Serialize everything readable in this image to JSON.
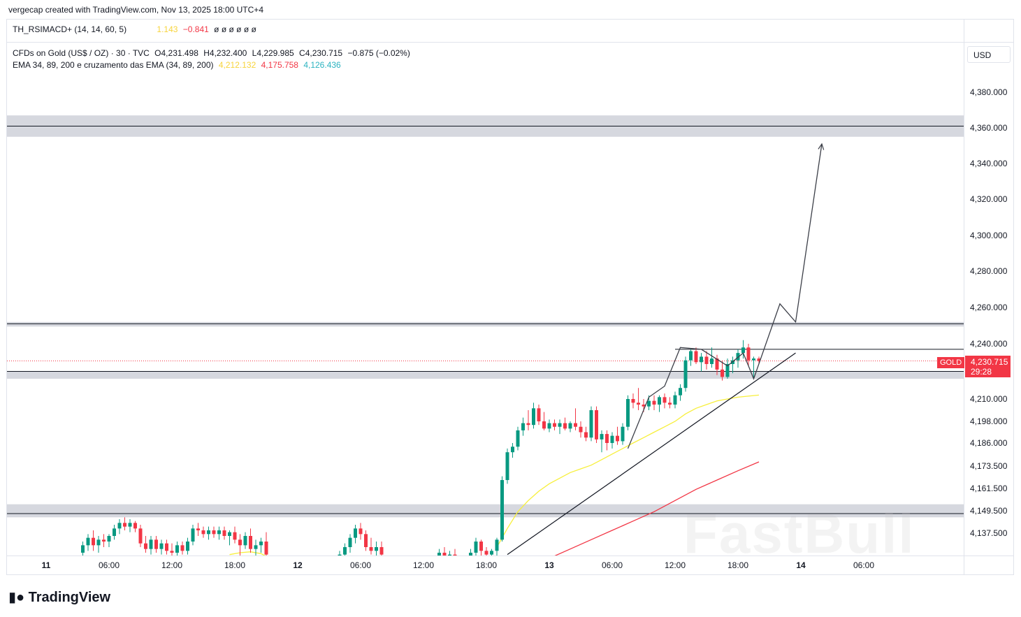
{
  "header": {
    "credit": "vergecap created with TradingView.com, Nov 13, 2025 18:00 UTC+4"
  },
  "oscillator": {
    "label": "TH_RSIMACD+ (14, 14, 60, 5)",
    "value1": "1.143",
    "value2": "−0.841",
    "placeholders": "ø  ø  ø  ø  ø  ø"
  },
  "symbol": {
    "title": "CFDs on Gold (US$ / OZ) · 30 · TVC",
    "open": "O4,231.498",
    "high": "H4,232.400",
    "low": "L4,229.985",
    "close": "C4,230.715",
    "change": "−0.875 (−0.02%)"
  },
  "ema": {
    "label": "EMA 34, 89, 200 e cruzamento das EMA (34, 89, 200)",
    "v34": "4,212.132",
    "v89": "4,175.758",
    "v200": "4,126.436"
  },
  "currency": "USD",
  "price_tag": {
    "symbol": "GOLD",
    "price": "4,230.715",
    "countdown": "29:28"
  },
  "footer": {
    "brand": "TradingView"
  },
  "watermark": "FastBull",
  "colors": {
    "up": "#089981",
    "down": "#f23645",
    "ema34": "#f7ef3b",
    "ema89": "#f23645",
    "zone": "#d1d4dc"
  },
  "chart_data": {
    "type": "candlestick",
    "symbol": "GOLD",
    "timeframe": "30",
    "y_ticks": [
      {
        "label": "4,380.000",
        "value": 4380
      },
      {
        "label": "4,360.000",
        "value": 4360
      },
      {
        "label": "4,340.000",
        "value": 4340
      },
      {
        "label": "4,320.000",
        "value": 4320
      },
      {
        "label": "4,300.000",
        "value": 4300
      },
      {
        "label": "4,280.000",
        "value": 4280
      },
      {
        "label": "4,260.000",
        "value": 4260
      },
      {
        "label": "4,240.000",
        "value": 4240
      },
      {
        "label": "4,210.000",
        "value": 4210
      },
      {
        "label": "4,198.000",
        "value": 4198
      },
      {
        "label": "4,186.000",
        "value": 4186
      },
      {
        "label": "4,173.500",
        "value": 4173.5
      },
      {
        "label": "4,161.500",
        "value": 4161.5
      },
      {
        "label": "4,149.500",
        "value": 4149.5
      },
      {
        "label": "4,137.500",
        "value": 4137.5
      }
    ],
    "x_ticks": [
      {
        "label": "11",
        "bar": 0,
        "bold": true
      },
      {
        "label": "06:00",
        "bar": 12
      },
      {
        "label": "12:00",
        "bar": 24
      },
      {
        "label": "18:00",
        "bar": 36
      },
      {
        "label": "12",
        "bar": 48,
        "bold": true
      },
      {
        "label": "06:00",
        "bar": 60
      },
      {
        "label": "12:00",
        "bar": 72
      },
      {
        "label": "18:00",
        "bar": 84
      },
      {
        "label": "13",
        "bar": 96,
        "bold": true
      },
      {
        "label": "06:00",
        "bar": 108
      },
      {
        "label": "12:00",
        "bar": 120
      },
      {
        "label": "18:00",
        "bar": 132
      },
      {
        "label": "14",
        "bar": 144,
        "bold": true
      },
      {
        "label": "06:00",
        "bar": 156
      }
    ],
    "last_price": 4230.715,
    "candles": [
      {
        "bar": 7,
        "o": 4127,
        "h": 4133,
        "l": 4124,
        "c": 4131
      },
      {
        "bar": 8,
        "o": 4131,
        "h": 4137,
        "l": 4128,
        "c": 4135
      },
      {
        "bar": 9,
        "o": 4135,
        "h": 4139,
        "l": 4128,
        "c": 4131
      },
      {
        "bar": 10,
        "o": 4131,
        "h": 4136,
        "l": 4127,
        "c": 4134
      },
      {
        "bar": 11,
        "o": 4134,
        "h": 4137,
        "l": 4130,
        "c": 4133
      },
      {
        "bar": 12,
        "o": 4133,
        "h": 4137,
        "l": 4130,
        "c": 4136
      },
      {
        "bar": 13,
        "o": 4136,
        "h": 4142,
        "l": 4134,
        "c": 4140
      },
      {
        "bar": 14,
        "o": 4140,
        "h": 4145,
        "l": 4137,
        "c": 4143
      },
      {
        "bar": 15,
        "o": 4143,
        "h": 4146,
        "l": 4139,
        "c": 4141
      },
      {
        "bar": 16,
        "o": 4141,
        "h": 4145,
        "l": 4138,
        "c": 4143
      },
      {
        "bar": 17,
        "o": 4143,
        "h": 4144,
        "l": 4138,
        "c": 4140
      },
      {
        "bar": 18,
        "o": 4140,
        "h": 4142,
        "l": 4130,
        "c": 4132
      },
      {
        "bar": 19,
        "o": 4132,
        "h": 4136,
        "l": 4127,
        "c": 4129
      },
      {
        "bar": 20,
        "o": 4129,
        "h": 4136,
        "l": 4126,
        "c": 4134
      },
      {
        "bar": 21,
        "o": 4134,
        "h": 4136,
        "l": 4127,
        "c": 4129
      },
      {
        "bar": 22,
        "o": 4129,
        "h": 4134,
        "l": 4126,
        "c": 4132
      },
      {
        "bar": 23,
        "o": 4132,
        "h": 4134,
        "l": 4126,
        "c": 4128
      },
      {
        "bar": 24,
        "o": 4128,
        "h": 4132,
        "l": 4125,
        "c": 4127
      },
      {
        "bar": 25,
        "o": 4127,
        "h": 4133,
        "l": 4125,
        "c": 4131
      },
      {
        "bar": 26,
        "o": 4131,
        "h": 4133,
        "l": 4126,
        "c": 4128
      },
      {
        "bar": 27,
        "o": 4128,
        "h": 4135,
        "l": 4126,
        "c": 4133
      },
      {
        "bar": 28,
        "o": 4133,
        "h": 4142,
        "l": 4131,
        "c": 4140
      },
      {
        "bar": 29,
        "o": 4140,
        "h": 4143,
        "l": 4136,
        "c": 4139
      },
      {
        "bar": 30,
        "o": 4139,
        "h": 4141,
        "l": 4135,
        "c": 4137
      },
      {
        "bar": 31,
        "o": 4137,
        "h": 4141,
        "l": 4134,
        "c": 4139
      },
      {
        "bar": 32,
        "o": 4139,
        "h": 4141,
        "l": 4135,
        "c": 4137
      },
      {
        "bar": 33,
        "o": 4137,
        "h": 4141,
        "l": 4134,
        "c": 4139
      },
      {
        "bar": 34,
        "o": 4139,
        "h": 4141,
        "l": 4134,
        "c": 4136
      },
      {
        "bar": 35,
        "o": 4136,
        "h": 4139,
        "l": 4131,
        "c": 4138
      },
      {
        "bar": 36,
        "o": 4138,
        "h": 4141,
        "l": 4132,
        "c": 4134
      },
      {
        "bar": 37,
        "o": 4134,
        "h": 4137,
        "l": 4125,
        "c": 4131
      },
      {
        "bar": 38,
        "o": 4131,
        "h": 4138,
        "l": 4129,
        "c": 4136
      },
      {
        "bar": 39,
        "o": 4136,
        "h": 4140,
        "l": 4127,
        "c": 4129
      },
      {
        "bar": 40,
        "o": 4129,
        "h": 4134,
        "l": 4125,
        "c": 4131
      },
      {
        "bar": 41,
        "o": 4131,
        "h": 4135,
        "l": 4127,
        "c": 4133
      },
      {
        "bar": 42,
        "o": 4133,
        "h": 4138,
        "l": 4124,
        "c": 4126
      },
      {
        "bar": 56,
        "o": 4124,
        "h": 4128,
        "l": 4121,
        "c": 4126
      },
      {
        "bar": 57,
        "o": 4126,
        "h": 4132,
        "l": 4124,
        "c": 4130
      },
      {
        "bar": 58,
        "o": 4130,
        "h": 4137,
        "l": 4127,
        "c": 4135
      },
      {
        "bar": 59,
        "o": 4135,
        "h": 4142,
        "l": 4132,
        "c": 4140
      },
      {
        "bar": 60,
        "o": 4140,
        "h": 4143,
        "l": 4134,
        "c": 4137
      },
      {
        "bar": 61,
        "o": 4137,
        "h": 4139,
        "l": 4128,
        "c": 4130
      },
      {
        "bar": 62,
        "o": 4130,
        "h": 4135,
        "l": 4126,
        "c": 4128
      },
      {
        "bar": 63,
        "o": 4128,
        "h": 4133,
        "l": 4125,
        "c": 4130
      },
      {
        "bar": 64,
        "o": 4130,
        "h": 4133,
        "l": 4124,
        "c": 4126
      },
      {
        "bar": 75,
        "o": 4124,
        "h": 4129,
        "l": 4121,
        "c": 4127
      },
      {
        "bar": 76,
        "o": 4127,
        "h": 4130,
        "l": 4124,
        "c": 4125
      },
      {
        "bar": 77,
        "o": 4125,
        "h": 4128,
        "l": 4122,
        "c": 4126
      },
      {
        "bar": 78,
        "o": 4126,
        "h": 4129,
        "l": 4122,
        "c": 4124
      },
      {
        "bar": 81,
        "o": 4124,
        "h": 4129,
        "l": 4121,
        "c": 4127
      },
      {
        "bar": 82,
        "o": 4127,
        "h": 4135,
        "l": 4125,
        "c": 4133
      },
      {
        "bar": 83,
        "o": 4133,
        "h": 4134,
        "l": 4124,
        "c": 4128
      },
      {
        "bar": 84,
        "o": 4128,
        "h": 4130,
        "l": 4122,
        "c": 4126
      },
      {
        "bar": 85,
        "o": 4126,
        "h": 4129,
        "l": 4123,
        "c": 4128
      },
      {
        "bar": 86,
        "o": 4128,
        "h": 4135,
        "l": 4125,
        "c": 4134
      },
      {
        "bar": 87,
        "o": 4134,
        "h": 4168,
        "l": 4133,
        "c": 4166
      },
      {
        "bar": 88,
        "o": 4166,
        "h": 4183,
        "l": 4164,
        "c": 4181
      },
      {
        "bar": 89,
        "o": 4181,
        "h": 4186,
        "l": 4178,
        "c": 4184
      },
      {
        "bar": 90,
        "o": 4184,
        "h": 4195,
        "l": 4182,
        "c": 4193
      },
      {
        "bar": 91,
        "o": 4193,
        "h": 4200,
        "l": 4190,
        "c": 4197
      },
      {
        "bar": 92,
        "o": 4197,
        "h": 4204,
        "l": 4193,
        "c": 4196
      },
      {
        "bar": 93,
        "o": 4196,
        "h": 4208,
        "l": 4194,
        "c": 4205
      },
      {
        "bar": 94,
        "o": 4205,
        "h": 4207,
        "l": 4196,
        "c": 4198
      },
      {
        "bar": 95,
        "o": 4198,
        "h": 4203,
        "l": 4193,
        "c": 4194
      },
      {
        "bar": 96,
        "o": 4194,
        "h": 4199,
        "l": 4192,
        "c": 4197
      },
      {
        "bar": 97,
        "o": 4197,
        "h": 4199,
        "l": 4193,
        "c": 4195
      },
      {
        "bar": 98,
        "o": 4195,
        "h": 4199,
        "l": 4191,
        "c": 4197
      },
      {
        "bar": 99,
        "o": 4197,
        "h": 4200,
        "l": 4193,
        "c": 4194
      },
      {
        "bar": 100,
        "o": 4194,
        "h": 4198,
        "l": 4192,
        "c": 4197
      },
      {
        "bar": 101,
        "o": 4197,
        "h": 4205,
        "l": 4193,
        "c": 4195
      },
      {
        "bar": 102,
        "o": 4195,
        "h": 4198,
        "l": 4189,
        "c": 4192
      },
      {
        "bar": 103,
        "o": 4192,
        "h": 4195,
        "l": 4187,
        "c": 4189
      },
      {
        "bar": 104,
        "o": 4189,
        "h": 4206,
        "l": 4187,
        "c": 4204
      },
      {
        "bar": 105,
        "o": 4204,
        "h": 4206,
        "l": 4186,
        "c": 4188
      },
      {
        "bar": 106,
        "o": 4188,
        "h": 4193,
        "l": 4181,
        "c": 4191
      },
      {
        "bar": 107,
        "o": 4191,
        "h": 4193,
        "l": 4182,
        "c": 4186
      },
      {
        "bar": 108,
        "o": 4186,
        "h": 4192,
        "l": 4183,
        "c": 4190
      },
      {
        "bar": 109,
        "o": 4190,
        "h": 4195,
        "l": 4185,
        "c": 4187
      },
      {
        "bar": 110,
        "o": 4187,
        "h": 4197,
        "l": 4185,
        "c": 4195
      },
      {
        "bar": 111,
        "o": 4195,
        "h": 4212,
        "l": 4193,
        "c": 4210
      },
      {
        "bar": 112,
        "o": 4210,
        "h": 4213,
        "l": 4205,
        "c": 4208
      },
      {
        "bar": 113,
        "o": 4208,
        "h": 4216,
        "l": 4204,
        "c": 4207
      },
      {
        "bar": 114,
        "o": 4207,
        "h": 4210,
        "l": 4203,
        "c": 4206
      },
      {
        "bar": 115,
        "o": 4206,
        "h": 4212,
        "l": 4204,
        "c": 4209
      },
      {
        "bar": 116,
        "o": 4209,
        "h": 4212,
        "l": 4204,
        "c": 4207
      },
      {
        "bar": 117,
        "o": 4207,
        "h": 4212,
        "l": 4203,
        "c": 4211
      },
      {
        "bar": 118,
        "o": 4211,
        "h": 4213,
        "l": 4205,
        "c": 4208
      },
      {
        "bar": 119,
        "o": 4208,
        "h": 4211,
        "l": 4205,
        "c": 4207
      },
      {
        "bar": 120,
        "o": 4207,
        "h": 4214,
        "l": 4205,
        "c": 4212
      },
      {
        "bar": 121,
        "o": 4212,
        "h": 4218,
        "l": 4209,
        "c": 4216
      },
      {
        "bar": 122,
        "o": 4216,
        "h": 4233,
        "l": 4214,
        "c": 4231
      },
      {
        "bar": 123,
        "o": 4231,
        "h": 4237,
        "l": 4228,
        "c": 4236
      },
      {
        "bar": 124,
        "o": 4236,
        "h": 4238,
        "l": 4229,
        "c": 4230
      },
      {
        "bar": 125,
        "o": 4230,
        "h": 4235,
        "l": 4225,
        "c": 4233
      },
      {
        "bar": 126,
        "o": 4233,
        "h": 4236,
        "l": 4226,
        "c": 4229
      },
      {
        "bar": 127,
        "o": 4229,
        "h": 4238,
        "l": 4227,
        "c": 4232
      },
      {
        "bar": 128,
        "o": 4232,
        "h": 4234,
        "l": 4223,
        "c": 4226
      },
      {
        "bar": 129,
        "o": 4226,
        "h": 4231,
        "l": 4220,
        "c": 4222
      },
      {
        "bar": 130,
        "o": 4222,
        "h": 4232,
        "l": 4221,
        "c": 4229
      },
      {
        "bar": 131,
        "o": 4229,
        "h": 4233,
        "l": 4224,
        "c": 4231
      },
      {
        "bar": 132,
        "o": 4231,
        "h": 4237,
        "l": 4227,
        "c": 4235
      },
      {
        "bar": 133,
        "o": 4235,
        "h": 4242,
        "l": 4232,
        "c": 4238
      },
      {
        "bar": 134,
        "o": 4238,
        "h": 4240,
        "l": 4228,
        "c": 4231
      },
      {
        "bar": 135,
        "o": 4231,
        "h": 4233,
        "l": 4221,
        "c": 4232
      },
      {
        "bar": 136,
        "o": 4232,
        "h": 4233,
        "l": 4229,
        "c": 4230.715
      }
    ],
    "ema34": [
      [
        35,
        4126
      ],
      [
        37,
        4127
      ],
      [
        39,
        4127.5
      ],
      [
        41,
        4126.5
      ],
      [
        42,
        4125
      ],
      [
        58,
        4124
      ],
      [
        60,
        4125
      ],
      [
        62,
        4124.5
      ],
      [
        64,
        4124
      ],
      [
        86,
        4130
      ],
      [
        88,
        4140
      ],
      [
        90,
        4149
      ],
      [
        92,
        4155
      ],
      [
        94,
        4160
      ],
      [
        96,
        4164
      ],
      [
        98,
        4167
      ],
      [
        100,
        4170
      ],
      [
        102,
        4172
      ],
      [
        104,
        4174
      ],
      [
        106,
        4177
      ],
      [
        108,
        4180
      ],
      [
        110,
        4183
      ],
      [
        112,
        4186
      ],
      [
        114,
        4189
      ],
      [
        116,
        4192
      ],
      [
        118,
        4195
      ],
      [
        120,
        4198
      ],
      [
        122,
        4202
      ],
      [
        124,
        4205
      ],
      [
        126,
        4207
      ],
      [
        128,
        4209
      ],
      [
        130,
        4210
      ],
      [
        132,
        4211
      ],
      [
        136,
        4212.132
      ]
    ],
    "ema89": [
      [
        96,
        4124
      ],
      [
        100,
        4129
      ],
      [
        104,
        4134
      ],
      [
        108,
        4139
      ],
      [
        112,
        4144
      ],
      [
        116,
        4149
      ],
      [
        120,
        4155
      ],
      [
        124,
        4161
      ],
      [
        128,
        4166
      ],
      [
        132,
        4171
      ],
      [
        136,
        4175.758
      ]
    ],
    "zones": [
      {
        "from": 4355,
        "to": 4367,
        "line": 4361
      },
      {
        "from": 4249.5,
        "to": 4252,
        "line": 4251
      },
      {
        "from": 4221,
        "to": 4225,
        "line": 4225
      },
      {
        "from": 4146,
        "to": 4153,
        "line": 4148
      }
    ],
    "range_box": {
      "from_bar": 120,
      "to_bar": 143,
      "top": 4237,
      "bottom": 4225
    },
    "trendline": [
      [
        88,
        4126
      ],
      [
        143,
        4235
      ]
    ],
    "projection_path": [
      [
        111,
        4183
      ],
      [
        115,
        4211
      ],
      [
        118,
        4217
      ],
      [
        121,
        4238
      ],
      [
        125,
        4237
      ],
      [
        130,
        4228
      ],
      [
        133,
        4235
      ],
      [
        135,
        4221
      ],
      [
        140,
        4262
      ],
      [
        143,
        4252
      ],
      [
        148,
        4351
      ]
    ]
  }
}
